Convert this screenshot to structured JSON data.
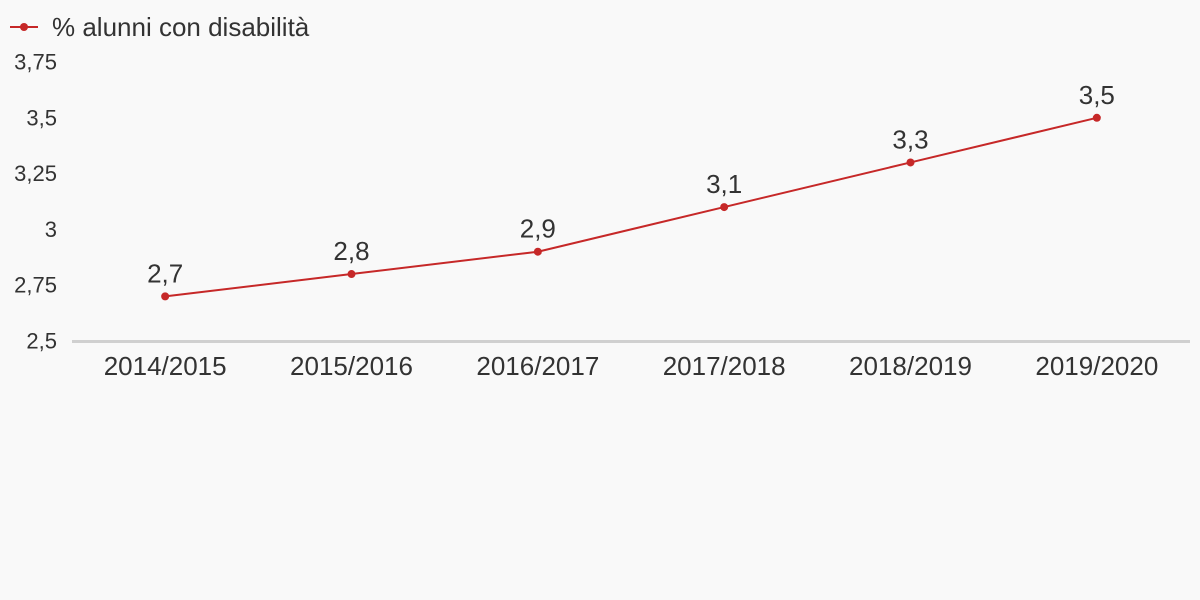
{
  "colors": {
    "background": "#f9f9f9",
    "series": "#c62828",
    "axis": "#d0d0d0",
    "text": "#333333"
  },
  "legend": {
    "position": "top-left"
  },
  "chart_data": {
    "type": "line",
    "title": "",
    "xlabel": "",
    "ylabel": "",
    "categories": [
      "2014/2015",
      "2015/2016",
      "2016/2017",
      "2017/2018",
      "2018/2019",
      "2019/2020"
    ],
    "series": [
      {
        "name": "% alunni con disabilità",
        "values": [
          2.7,
          2.8,
          2.9,
          3.1,
          3.3,
          3.5
        ],
        "labels": [
          "2,7",
          "2,8",
          "2,9",
          "3,1",
          "3,3",
          "3,5"
        ]
      }
    ],
    "ylim": [
      2.5,
      3.75
    ],
    "yticks": [
      2.5,
      2.75,
      3,
      3.25,
      3.5,
      3.75
    ],
    "ytick_labels": [
      "2,5",
      "2,75",
      "3",
      "3,25",
      "3,5",
      "3,75"
    ],
    "grid": false,
    "data_labels": true
  }
}
